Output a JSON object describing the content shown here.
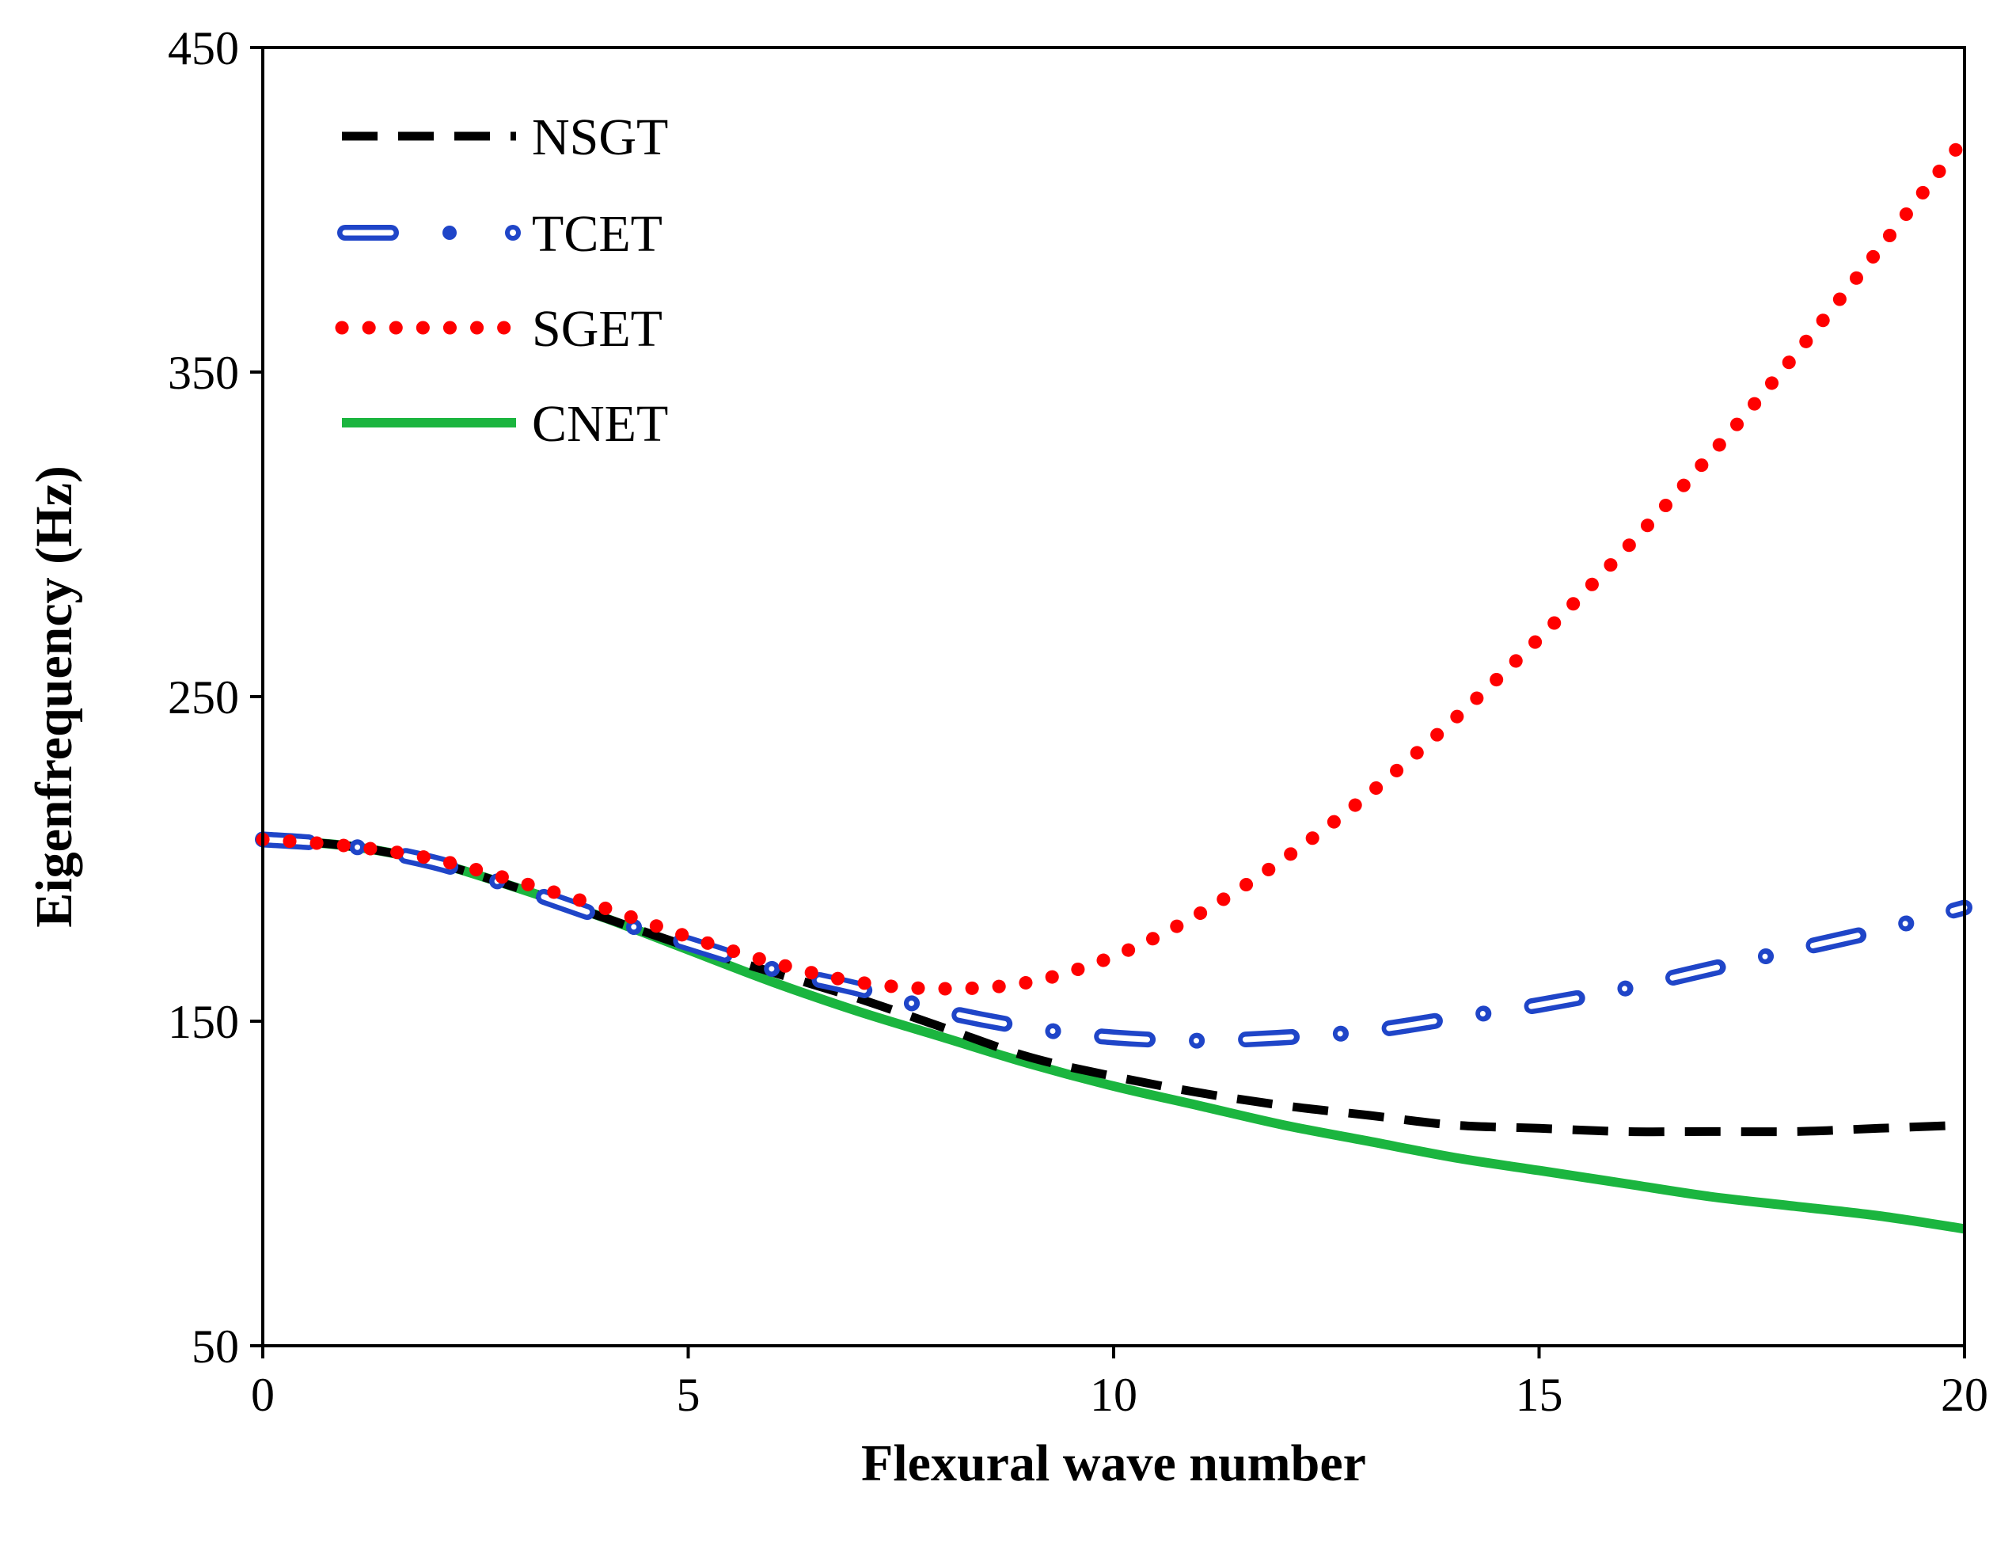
{
  "chart_data": {
    "type": "line",
    "title": "",
    "xlabel": "Flexural wave number",
    "ylabel": "Eigenfrequency (Hz)",
    "xlim": [
      0,
      20
    ],
    "ylim": [
      50,
      450
    ],
    "xticks": [
      0,
      5,
      10,
      15,
      20
    ],
    "yticks": [
      50,
      150,
      250,
      350,
      450
    ],
    "x_tick_labels": [
      "0",
      "5",
      "10",
      "15",
      "20"
    ],
    "y_tick_labels": [
      "50",
      "150",
      "250",
      "350",
      "450"
    ],
    "grid": false,
    "legend_position": "top-left",
    "series": [
      {
        "name": "NSGT",
        "color": "#000000",
        "style": "dashed",
        "x": [
          0,
          1,
          2,
          3,
          4,
          5,
          6,
          7,
          8,
          9,
          10,
          11,
          12,
          13,
          14,
          15,
          16,
          17,
          18,
          19,
          20
        ],
        "y": [
          206,
          204,
          199,
          191,
          182,
          173,
          165,
          157,
          148,
          139,
          133,
          128,
          124,
          121,
          118,
          117,
          116,
          116,
          116,
          117,
          118
        ]
      },
      {
        "name": "TCET",
        "color": "#1f45c8",
        "style": "dash-dot-hollow",
        "x": [
          0,
          1,
          2,
          3,
          4,
          5,
          6,
          7,
          8,
          9,
          10,
          11,
          12,
          13,
          14,
          15,
          16,
          17,
          18,
          19,
          20
        ],
        "y": [
          206,
          204,
          199,
          191,
          182,
          174,
          166,
          160,
          153,
          148,
          145,
          144,
          145,
          147,
          151,
          155,
          160,
          166,
          172,
          178,
          185
        ]
      },
      {
        "name": "SGET",
        "color": "#ff0000",
        "style": "dotted",
        "x": [
          0,
          1,
          2,
          3,
          4,
          5,
          6,
          7,
          8,
          9,
          10,
          11,
          12,
          13,
          14,
          15,
          16,
          17,
          18,
          19,
          20
        ],
        "y": [
          206,
          204,
          200,
          193,
          185,
          176,
          168,
          162,
          160,
          162,
          170,
          183,
          200,
          220,
          243,
          268,
          295,
          324,
          355,
          388,
          422
        ]
      },
      {
        "name": "CNET",
        "color": "#1bb53f",
        "style": "solid",
        "x": [
          0,
          1,
          2,
          3,
          4,
          5,
          6,
          7,
          8,
          9,
          10,
          11,
          12,
          13,
          14,
          15,
          16,
          17,
          18,
          19,
          20
        ],
        "y": [
          206,
          204,
          199,
          191,
          182,
          172,
          162,
          153,
          145,
          137,
          130,
          124,
          118,
          113,
          108,
          104,
          100,
          96,
          93,
          90,
          86
        ]
      }
    ]
  }
}
